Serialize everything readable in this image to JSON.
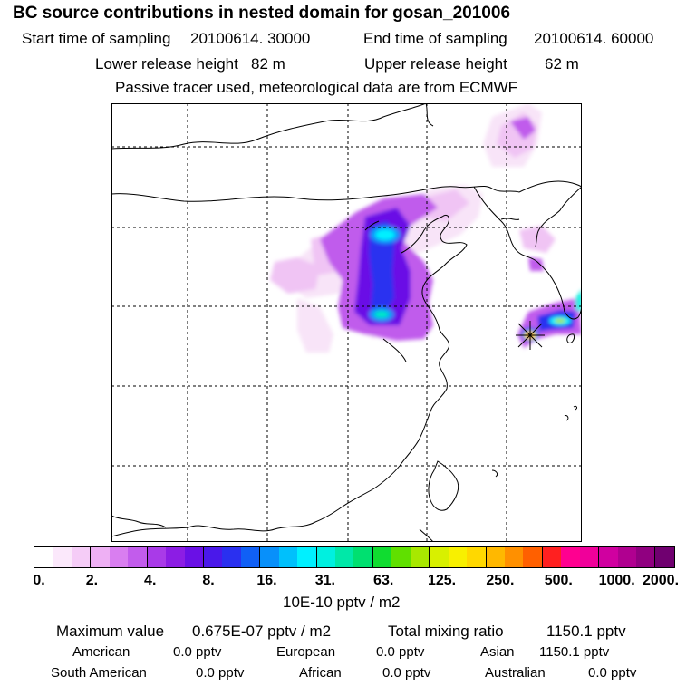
{
  "title": "BC  source contributions in nested domain for gosan_201006",
  "sampling": {
    "start_label": "Start time of sampling",
    "start_value": "20100614. 30000",
    "end_label": "End time of sampling",
    "end_value": "20100614. 60000"
  },
  "release": {
    "lower_label": "Lower release height",
    "lower_value": "82 m",
    "upper_label": "Upper release height",
    "upper_value": "62 m"
  },
  "note": "Passive tracer used, meteorological data are from ECMWF",
  "colorbar": {
    "ticks": [
      "0.",
      "2.",
      "4.",
      "8.",
      "16.",
      "31.",
      "63.",
      "125.",
      "250.",
      "500.",
      "1000.",
      "2000."
    ],
    "unit": "10E-10 pptv / m2",
    "colors": [
      "#ffffff",
      "#fbe8fb",
      "#f5ccf7",
      "#eeb0f4",
      "#d97ef0",
      "#c25cec",
      "#a93ae8",
      "#8c1de4",
      "#6a10e6",
      "#4a18ea",
      "#2a30f0",
      "#1060f6",
      "#0890fa",
      "#00c0fc",
      "#00f0ff",
      "#00f0e0",
      "#00e8a8",
      "#00e070",
      "#10dc30",
      "#60e000",
      "#a8e800",
      "#d8f000",
      "#f8f000",
      "#ffd800",
      "#ffb800",
      "#ff9000",
      "#ff6000",
      "#ff2020",
      "#ff0090",
      "#f0009a",
      "#d000a0",
      "#b00090",
      "#900080",
      "#700070"
    ]
  },
  "stats": {
    "max_label": "Maximum value",
    "max_value": "0.675E-07 pptv / m2",
    "total_label": "Total mixing ratio",
    "total_value": "1150.1 pptv"
  },
  "regions": {
    "american_label": "American",
    "american_value": "0.0 pptv",
    "european_label": "European",
    "european_value": "0.0 pptv",
    "asian_label": "Asian",
    "asian_value": "1150.1 pptv",
    "south_american_label": "South American",
    "south_american_value": "0.0 pptv",
    "african_label": "African",
    "african_value": "0.0 pptv",
    "australian_label": "Australian",
    "australian_value": "0.0 pptv"
  }
}
